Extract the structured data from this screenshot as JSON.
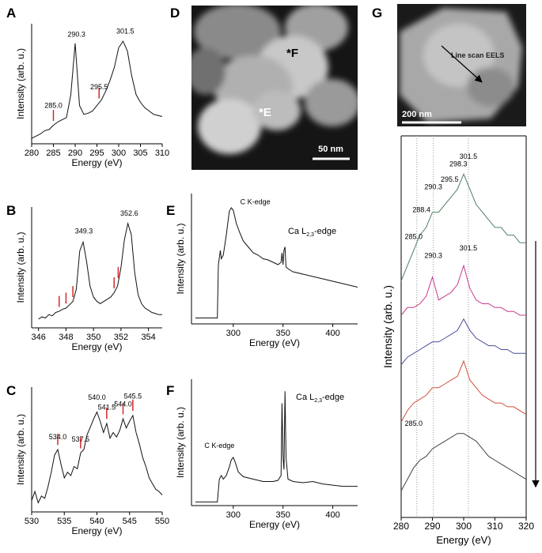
{
  "chart_data": [
    {
      "type": "line",
      "panel": "A",
      "x_label": "Energy (eV)",
      "y_label": "Intensity (arb. u.)",
      "color": "#111111",
      "marker_color": "#d62728",
      "x": [
        280,
        281,
        282,
        283,
        284,
        285,
        286,
        287,
        288,
        289,
        290,
        291,
        292,
        293,
        294,
        295,
        296,
        297,
        298,
        299,
        300,
        301,
        302,
        303,
        304,
        305,
        306,
        307,
        308,
        309,
        310
      ],
      "values": [
        5,
        7,
        9,
        12,
        13,
        17,
        20,
        22,
        24,
        45,
        92,
        35,
        27,
        28,
        30,
        35,
        40,
        48,
        58,
        70,
        88,
        94,
        85,
        62,
        45,
        38,
        33,
        30,
        27,
        26,
        25
      ],
      "xlim": [
        280,
        310
      ],
      "xticks": [
        280,
        285,
        290,
        295,
        300,
        305,
        310
      ],
      "ylim": [
        0,
        110
      ],
      "annotations": [
        {
          "label": "290.3",
          "x": 290.3,
          "y": 98
        },
        {
          "label": "301.5",
          "x": 301.5,
          "y": 101
        },
        {
          "label": "295.5",
          "x": 295.5,
          "y": 50
        },
        {
          "label": "285.0",
          "x": 285,
          "y": 33
        }
      ],
      "markers": [
        285,
        295.5
      ]
    },
    {
      "type": "line",
      "panel": "B",
      "x_label": "Energy (eV)",
      "y_label": "Intensity (arb. u.)",
      "color": "#111111",
      "marker_color": "#d62728",
      "x": [
        346,
        346.25,
        346.5,
        346.75,
        347,
        347.25,
        347.5,
        347.75,
        348,
        348.25,
        348.5,
        348.75,
        349,
        349.25,
        349.5,
        349.75,
        350,
        350.25,
        350.5,
        350.75,
        351,
        351.25,
        351.5,
        351.75,
        352,
        352.25,
        352.5,
        352.75,
        353,
        353.25,
        353.5,
        353.75,
        354,
        354.25,
        354.5,
        354.75,
        355
      ],
      "values": [
        8,
        10,
        9,
        12,
        11,
        14,
        15,
        17,
        18,
        21,
        24,
        35,
        70,
        78,
        60,
        38,
        28,
        24,
        22,
        24,
        26,
        28,
        32,
        38,
        55,
        80,
        95,
        85,
        50,
        30,
        22,
        18,
        16,
        14,
        13,
        12,
        12
      ],
      "xlim": [
        345.5,
        355
      ],
      "xticks": [
        346,
        348,
        350,
        352,
        354
      ],
      "ylim": [
        0,
        110
      ],
      "annotations": [
        {
          "label": "349.3",
          "x": 349.3,
          "y": 86
        },
        {
          "label": "352.6",
          "x": 352.6,
          "y": 102
        }
      ],
      "markers": [
        347.5,
        348,
        348.5,
        351.5,
        351.8
      ]
    },
    {
      "type": "line",
      "panel": "C",
      "x_label": "Energy (eV)",
      "y_label": "Intensity (arb. u.)",
      "color": "#111111",
      "marker_color": "#d62728",
      "x": [
        530,
        530.5,
        531,
        531.5,
        532,
        532.5,
        533,
        533.5,
        534,
        534.5,
        535,
        535.5,
        536,
        536.5,
        537,
        537.5,
        538,
        538.5,
        539,
        539.5,
        540,
        540.5,
        541,
        541.5,
        542,
        542.5,
        543,
        543.5,
        544,
        544.5,
        545,
        545.5,
        546,
        546.5,
        547,
        547.5,
        548,
        548.5,
        549,
        549.5,
        550
      ],
      "values": [
        10,
        18,
        8,
        14,
        12,
        22,
        35,
        50,
        55,
        42,
        30,
        35,
        32,
        40,
        38,
        52,
        55,
        68,
        75,
        82,
        88,
        80,
        70,
        78,
        65,
        70,
        66,
        72,
        82,
        74,
        80,
        85,
        70,
        60,
        48,
        40,
        30,
        25,
        20,
        18,
        15
      ],
      "xlim": [
        530,
        550
      ],
      "xticks": [
        530,
        535,
        540,
        545,
        550
      ],
      "ylim": [
        0,
        110
      ],
      "annotations": [
        {
          "label": "534.0",
          "x": 534,
          "y": 64
        },
        {
          "label": "537.5",
          "x": 537.5,
          "y": 62
        },
        {
          "label": "540.0",
          "x": 540,
          "y": 99
        },
        {
          "label": "541.5",
          "x": 541.5,
          "y": 90
        },
        {
          "label": "544.0",
          "x": 544,
          "y": 93
        },
        {
          "label": "545.5",
          "x": 545.5,
          "y": 100
        }
      ],
      "markers": [
        534,
        537.5,
        541.5,
        544,
        545.5
      ]
    },
    {
      "type": "line",
      "panel": "E",
      "x_label": "Energy (eV)",
      "y_label": "Intensity (arb. u.)",
      "color": "#111111",
      "x": [
        262,
        280,
        284,
        285,
        287,
        288,
        290,
        293,
        296,
        298,
        300,
        303,
        306,
        310,
        315,
        320,
        325,
        330,
        335,
        340,
        345,
        348,
        349,
        350,
        351,
        352,
        353,
        356,
        360,
        370,
        380,
        390,
        400,
        410,
        420,
        425
      ],
      "values": [
        5,
        5,
        5,
        50,
        62,
        55,
        58,
        75,
        95,
        98,
        96,
        85,
        78,
        70,
        65,
        60,
        58,
        55,
        54,
        52,
        50,
        52,
        60,
        50,
        62,
        65,
        48,
        46,
        44,
        42,
        40,
        38,
        36,
        34,
        32,
        31
      ],
      "xlim": [
        258,
        425
      ],
      "xticks": [
        300,
        350,
        400
      ],
      "ylim": [
        0,
        110
      ],
      "annotations": [
        {
          "label": "C K-edge",
          "x": 307,
          "y": 101
        },
        {
          "label": "Ca L",
          "subscript": "2,3",
          "suffix": "-edge",
          "x": 355,
          "y": 76
        }
      ]
    },
    {
      "type": "line",
      "panel": "F",
      "x_label": "Energy (eV)",
      "y_label": "Intensity (arb. u.)",
      "color": "#111111",
      "x": [
        262,
        280,
        284,
        286,
        288,
        290,
        293,
        296,
        298,
        300,
        302,
        305,
        310,
        320,
        330,
        340,
        345,
        348,
        349,
        350,
        351,
        352,
        353,
        355,
        360,
        370,
        380,
        390,
        400,
        410,
        420,
        425
      ],
      "values": [
        3,
        3,
        3,
        22,
        25,
        22,
        25,
        32,
        38,
        40,
        36,
        28,
        24,
        22,
        20,
        20,
        21,
        25,
        85,
        40,
        30,
        95,
        40,
        22,
        20,
        19,
        20,
        18,
        17,
        16,
        16,
        16
      ],
      "xlim": [
        258,
        425
      ],
      "xticks": [
        300,
        350,
        400
      ],
      "ylim": [
        0,
        105
      ],
      "annotations": [
        {
          "label": "C K-edge",
          "x": 271,
          "y": 48
        },
        {
          "label": "Ca L",
          "subscript": "2,3",
          "suffix": "-edge",
          "x": 363,
          "y": 88
        }
      ]
    },
    {
      "type": "line",
      "x_label": "Energy (eV)",
      "y_label": "Intensity (arb. u.)",
      "x": [
        280,
        282,
        284,
        286,
        288,
        290,
        292,
        294,
        296,
        298,
        300,
        302,
        304,
        306,
        308,
        310,
        312,
        314,
        316,
        318,
        320
      ],
      "series": [
        {
          "color": "#4e8060",
          "values": [
            62,
            66,
            70,
            74,
            76,
            80,
            80,
            82,
            84,
            86,
            90,
            86,
            82,
            80,
            78,
            76,
            76,
            74,
            74,
            72,
            72
          ]
        },
        {
          "color": "#c8388a",
          "values": [
            53,
            55,
            55,
            56,
            58,
            63,
            57,
            58,
            59,
            61,
            66,
            60,
            57,
            56,
            56,
            55,
            55,
            54,
            54,
            53,
            53
          ]
        },
        {
          "color": "#4a4e9a",
          "values": [
            40,
            42,
            43,
            44,
            45,
            46,
            46,
            47,
            48,
            49,
            52,
            49,
            47,
            46,
            45,
            45,
            44,
            44,
            43,
            43,
            43
          ]
        },
        {
          "color": "#d0503a",
          "values": [
            25,
            28,
            30,
            31,
            32,
            34,
            34,
            35,
            36,
            37,
            41,
            36,
            34,
            32,
            31,
            30,
            30,
            29,
            29,
            28,
            27
          ]
        },
        {
          "color": "#444444",
          "values": [
            7,
            10,
            13,
            15,
            16,
            18,
            19,
            20,
            21,
            22,
            22,
            21,
            20,
            18,
            16,
            15,
            14,
            13,
            12,
            11,
            10
          ]
        }
      ],
      "xlim": [
        280,
        320
      ],
      "xticks": [
        280,
        290,
        300,
        310,
        320
      ],
      "ylim": [
        0,
        100
      ],
      "guides": [
        285,
        290.3,
        301.5
      ],
      "annotations": [
        {
          "label": "285.0",
          "x": 284,
          "y": 73
        },
        {
          "label": "288.4",
          "x": 286.5,
          "y": 80
        },
        {
          "label": "290.3",
          "x": 290.3,
          "y": 86
        },
        {
          "label": "295.5",
          "x": 295.5,
          "y": 88
        },
        {
          "label": "298.3",
          "x": 298.3,
          "y": 92
        },
        {
          "label": "301.5",
          "x": 301.5,
          "y": 94
        },
        {
          "label": "290.3",
          "x": 290.3,
          "y": 68
        },
        {
          "label": "301.5",
          "x": 301.5,
          "y": 70
        },
        {
          "label": "285.0",
          "x": 284,
          "y": 24
        }
      ]
    }
  ],
  "images": [
    {
      "panel": "D",
      "labels": [
        "*F",
        "*E"
      ],
      "scale_bar": "50 nm"
    },
    {
      "panel": "G",
      "caption": "Line scan EELS",
      "scale_bar": "200 nm"
    }
  ]
}
